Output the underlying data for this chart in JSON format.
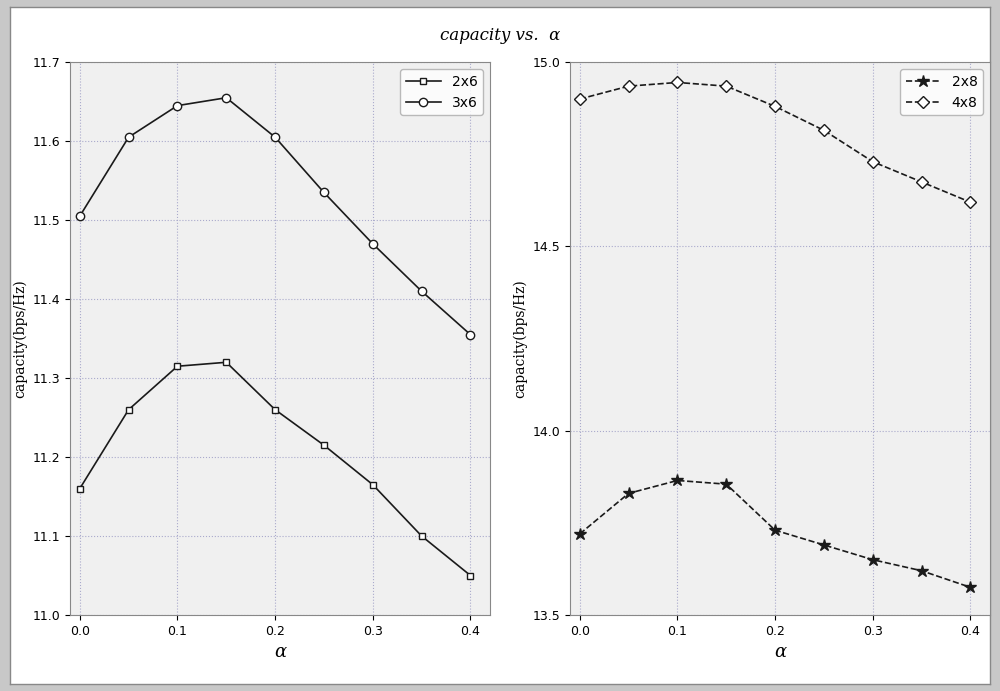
{
  "title": "capacity vs.  α",
  "alpha_values": [
    0,
    0.05,
    0.1,
    0.15,
    0.2,
    0.25,
    0.3,
    0.35,
    0.4
  ],
  "left_plot": {
    "series_2x6": [
      11.16,
      11.26,
      11.315,
      11.32,
      11.26,
      11.215,
      11.165,
      11.1,
      11.05
    ],
    "series_3x6": [
      11.505,
      11.605,
      11.645,
      11.655,
      11.605,
      11.535,
      11.47,
      11.41,
      11.355
    ],
    "ylabel": "capacity(bps/Hz)",
    "xlabel": "α",
    "ylim": [
      11.0,
      11.7
    ],
    "yticks": [
      11.0,
      11.1,
      11.2,
      11.3,
      11.4,
      11.5,
      11.6,
      11.7
    ],
    "legend_labels": [
      "2x6",
      "3x6"
    ]
  },
  "right_plot": {
    "series_2x8": [
      13.72,
      13.83,
      13.865,
      13.855,
      13.73,
      13.69,
      13.65,
      13.62,
      13.575
    ],
    "series_4x8": [
      14.9,
      14.935,
      14.945,
      14.935,
      14.88,
      14.815,
      14.73,
      14.675,
      14.62
    ],
    "ylabel": "capacity(bps/Hz)",
    "xlabel": "α",
    "ylim": [
      13.5,
      15.0
    ],
    "yticks": [
      13.5,
      14.0,
      14.5,
      15.0
    ],
    "legend_labels": [
      "2x8",
      "4x8"
    ]
  },
  "fig_bg_color": "#c8c8c8",
  "plot_bg_color": "#f0f0f0",
  "line_color": "#1a1a1a",
  "grid_color": "#aaaacc",
  "grid_style": ":",
  "xticks": [
    0,
    0.1,
    0.2,
    0.3,
    0.4
  ],
  "subplot_border_color": "#888888",
  "title_fontsize": 12
}
